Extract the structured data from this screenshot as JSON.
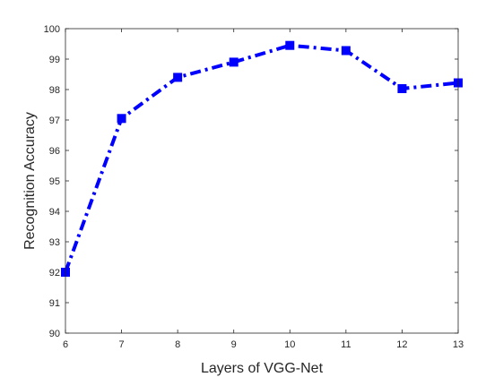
{
  "chart_data": {
    "type": "line",
    "title": "",
    "xlabel": "Layers of VGG-Net",
    "ylabel": "Recognition Accuracy",
    "x": [
      6,
      7,
      8,
      9,
      10,
      11,
      12,
      13
    ],
    "xlim": [
      6,
      13
    ],
    "ylim": [
      90,
      100
    ],
    "xticks": [
      "6",
      "7",
      "8",
      "9",
      "10",
      "11",
      "12",
      "13"
    ],
    "yticks": [
      "90",
      "91",
      "92",
      "93",
      "94",
      "95",
      "96",
      "97",
      "98",
      "99",
      "100"
    ],
    "grid": false,
    "legend": "none",
    "series": [
      {
        "values": [
          92.0,
          97.05,
          98.4,
          98.9,
          99.45,
          99.28,
          98.03,
          98.22
        ],
        "color": "#0000ff",
        "line_style": "dash-dot",
        "marker": "square"
      }
    ]
  }
}
